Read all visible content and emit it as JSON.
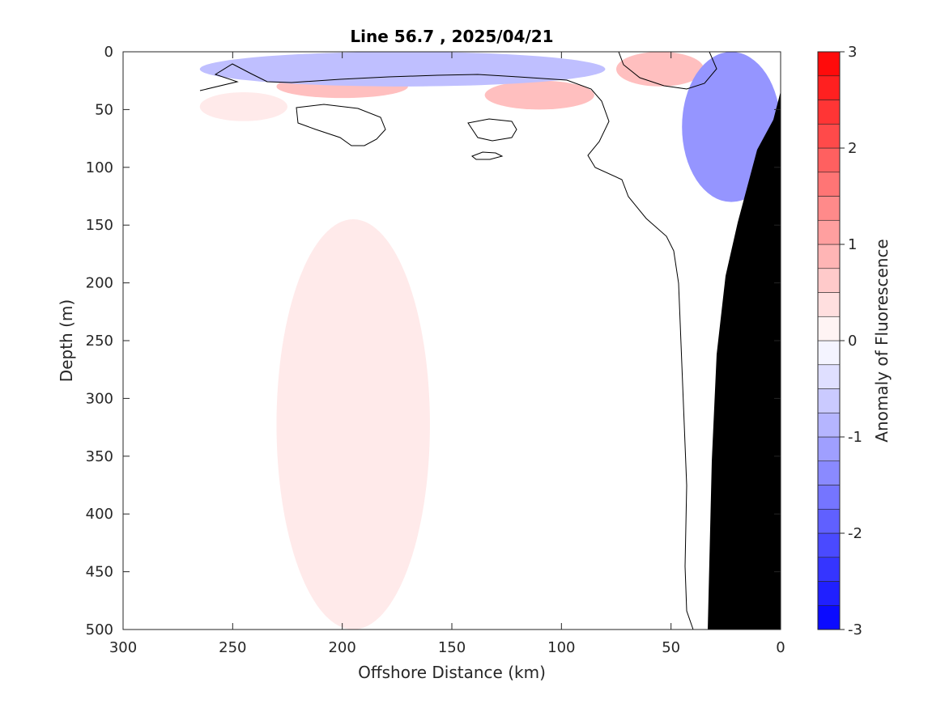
{
  "chart_data": {
    "type": "heatmap",
    "title": "Line 56.7 , 2025/04/21",
    "xlabel": "Offshore Distance (km)",
    "ylabel": "Depth (m)",
    "xlim": [
      300,
      0
    ],
    "ylim": [
      0,
      500
    ],
    "x_reversed": true,
    "y_reversed": true,
    "x_ticks": [
      "300",
      "250",
      "200",
      "150",
      "100",
      "50",
      "0"
    ],
    "y_ticks": [
      "0",
      "50",
      "100",
      "150",
      "200",
      "250",
      "300",
      "350",
      "400",
      "450",
      "500"
    ],
    "colorbar": {
      "label": "Anomaly of Fluorescence",
      "range": [
        -3,
        3
      ],
      "step": 0.25,
      "ticks": [
        "3",
        "2",
        "1",
        "0",
        "-1",
        "-2",
        "-3"
      ],
      "low_color": "#0000ff",
      "zero_color": "#ffffff",
      "high_color": "#ff0000"
    },
    "features": [
      {
        "kind": "positive-patch",
        "x": [
          230,
          170
        ],
        "y": [
          20,
          40
        ],
        "value": 0.75
      },
      {
        "kind": "positive-patch",
        "x": [
          135,
          85
        ],
        "y": [
          25,
          50
        ],
        "value": 0.75
      },
      {
        "kind": "positive-patch",
        "x": [
          75,
          35
        ],
        "y": [
          0,
          30
        ],
        "value": 0.75
      },
      {
        "kind": "positive-patch",
        "x": [
          265,
          225
        ],
        "y": [
          35,
          60
        ],
        "value": 0.25
      },
      {
        "kind": "positive-column",
        "x": [
          230,
          160
        ],
        "y": [
          145,
          500
        ],
        "value": 0.25
      },
      {
        "kind": "negative-layer",
        "x": [
          265,
          80
        ],
        "y": [
          0,
          30
        ],
        "value": -0.75
      },
      {
        "kind": "negative-nearshore",
        "x": [
          45,
          0
        ],
        "y": [
          0,
          130
        ],
        "value": -1.25
      },
      {
        "kind": "bottom-topography",
        "x": [
          40,
          0
        ],
        "y": [
          35,
          500
        ]
      }
    ]
  }
}
